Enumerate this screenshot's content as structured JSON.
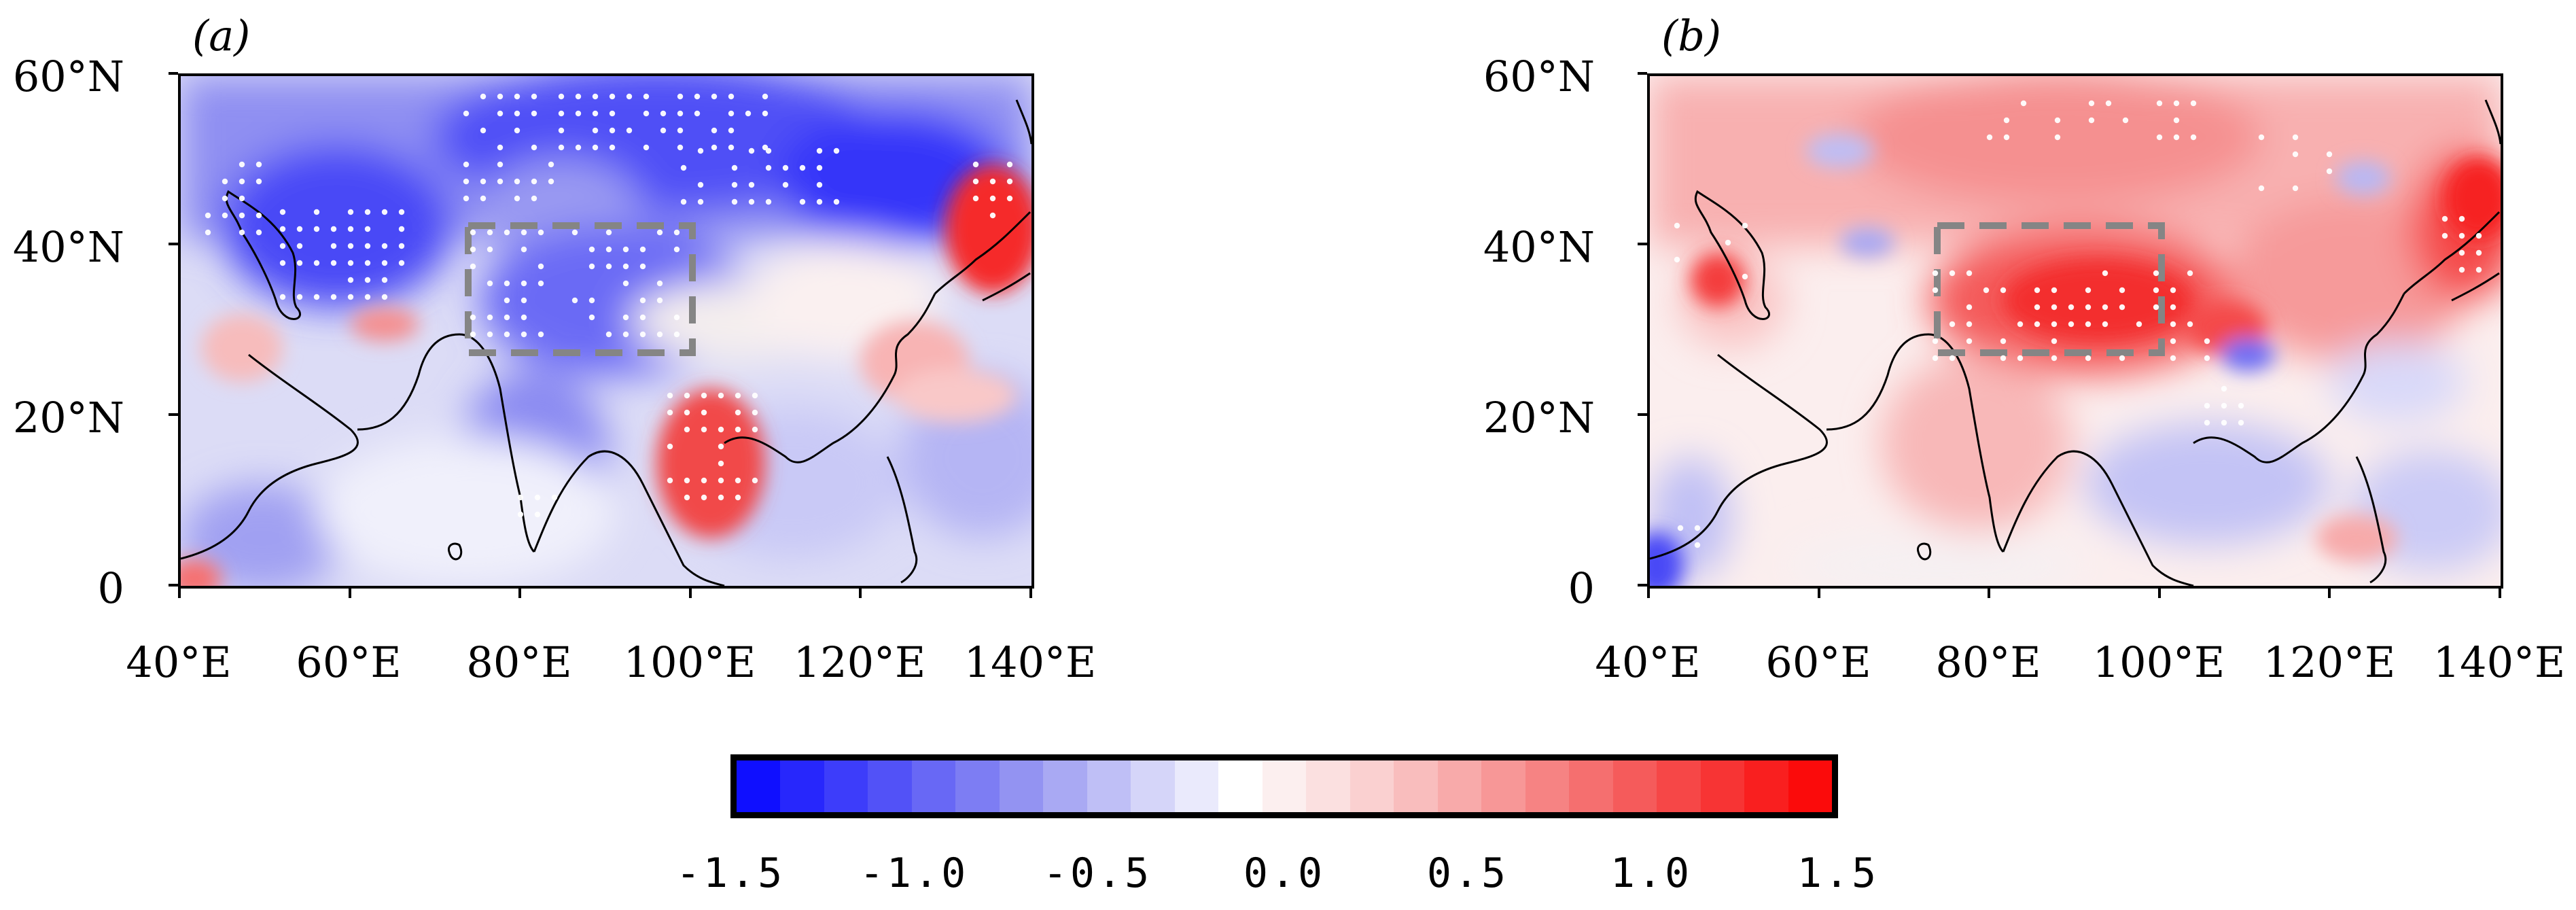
{
  "panels": [
    {
      "label": "(a)",
      "pattern": "negative",
      "box_extent": {
        "lon": [
          73,
          103
        ],
        "lat": [
          27,
          42
        ]
      }
    },
    {
      "label": "(b)",
      "pattern": "positive",
      "box_extent": {
        "lon": [
          73,
          103
        ],
        "lat": [
          27,
          42
        ]
      }
    }
  ],
  "lat_labels": [
    "60°N",
    "40°N",
    "20°N",
    "0"
  ],
  "lon_labels": [
    "40°E",
    "60°E",
    "80°E",
    "100°E",
    "120°E",
    "140°E"
  ],
  "map_extent": {
    "lon": [
      40,
      140
    ],
    "lat": [
      0,
      60
    ]
  },
  "colorbar": {
    "min": -1.5,
    "max": 1.5,
    "tick_labels": [
      "-1.5",
      "-1.0",
      "-0.5",
      "0.0",
      "0.5",
      "1.0",
      "1.5"
    ],
    "colors": [
      "#0f0fff",
      "#2727fc",
      "#3d3dfa",
      "#5252f7",
      "#6868f5",
      "#7d7df3",
      "#9393f2",
      "#a9a9f3",
      "#bfbff6",
      "#d5d5f9",
      "#eaeafc",
      "#ffffff",
      "#fcefef",
      "#fbe0e0",
      "#fad0d0",
      "#f9bdbd",
      "#f8aaaa",
      "#f79797",
      "#f68383",
      "#f56f6f",
      "#f55b5b",
      "#f64747",
      "#f73434",
      "#f91f1f",
      "#fb0b0b"
    ]
  }
}
